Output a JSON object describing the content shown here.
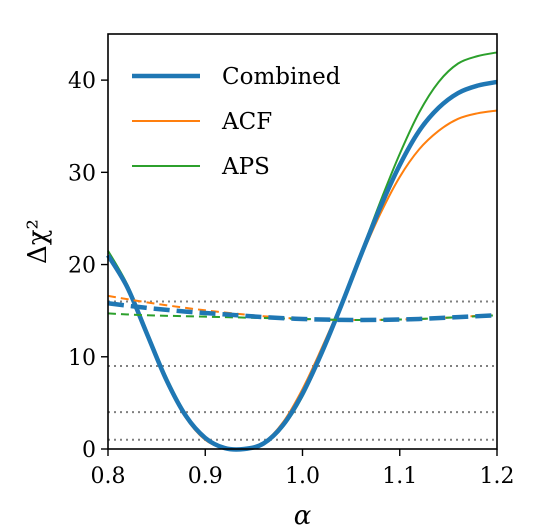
{
  "chart_data": {
    "type": "line",
    "title": "",
    "xlabel": "α",
    "ylabel": "Δχ²",
    "xlim": [
      0.8,
      1.2
    ],
    "ylim": [
      0,
      45
    ],
    "x_ticks": [
      "0.8",
      "0.9",
      "1.0",
      "1.1",
      "1.2"
    ],
    "y_ticks": [
      "0",
      "10",
      "20",
      "30",
      "40"
    ],
    "legend_position": "top-left",
    "reference_lines": [
      1,
      4,
      9,
      16
    ],
    "grid": false,
    "series": [
      {
        "name": "Combined",
        "color": "#1f77b4",
        "style": "solid",
        "weight": "thick",
        "x": [
          0.8,
          0.82,
          0.84,
          0.86,
          0.88,
          0.9,
          0.92,
          0.94,
          0.96,
          0.98,
          1.0,
          1.02,
          1.04,
          1.06,
          1.08,
          1.1,
          1.12,
          1.14,
          1.16,
          1.18,
          1.2
        ],
        "y": [
          21.0,
          17.5,
          12.5,
          7.5,
          3.6,
          1.2,
          0.1,
          0.0,
          0.6,
          2.6,
          6.0,
          10.5,
          15.6,
          21.0,
          26.2,
          30.8,
          34.5,
          37.0,
          38.6,
          39.4,
          39.8
        ]
      },
      {
        "name": "ACF",
        "color": "#ff7f0e",
        "style": "solid",
        "weight": "thin",
        "x": [
          0.8,
          0.82,
          0.84,
          0.86,
          0.88,
          0.9,
          0.92,
          0.94,
          0.96,
          0.98,
          1.0,
          1.02,
          1.04,
          1.06,
          1.08,
          1.1,
          1.12,
          1.14,
          1.16,
          1.18,
          1.2
        ],
        "y": [
          21.0,
          17.3,
          12.3,
          7.3,
          3.4,
          1.0,
          0.1,
          0.0,
          0.7,
          2.9,
          6.5,
          11.0,
          15.8,
          20.8,
          25.5,
          29.5,
          32.5,
          34.5,
          35.8,
          36.4,
          36.7
        ]
      },
      {
        "name": "APS",
        "color": "#2ca02c",
        "style": "solid",
        "weight": "thin",
        "x": [
          0.8,
          0.82,
          0.84,
          0.86,
          0.88,
          0.9,
          0.92,
          0.94,
          0.96,
          0.98,
          1.0,
          1.02,
          1.04,
          1.06,
          1.08,
          1.1,
          1.12,
          1.14,
          1.16,
          1.18,
          1.2
        ],
        "y": [
          21.5,
          17.8,
          12.8,
          7.8,
          3.8,
          1.3,
          0.2,
          0.0,
          0.5,
          2.4,
          5.7,
          10.3,
          15.5,
          21.2,
          26.8,
          32.0,
          36.5,
          39.8,
          41.8,
          42.6,
          43.0
        ]
      },
      {
        "name": "",
        "color": "#1f77b4",
        "style": "dashed",
        "weight": "thick",
        "x": [
          0.8,
          0.84,
          0.88,
          0.92,
          0.96,
          1.0,
          1.04,
          1.08,
          1.12,
          1.16,
          1.2
        ],
        "y": [
          15.8,
          15.3,
          14.9,
          14.6,
          14.3,
          14.1,
          14.0,
          14.0,
          14.1,
          14.3,
          14.5
        ]
      },
      {
        "name": "",
        "color": "#ff7f0e",
        "style": "dashed",
        "weight": "thin",
        "x": [
          0.8,
          0.84,
          0.88,
          0.92,
          0.96,
          1.0,
          1.04,
          1.08,
          1.12,
          1.16,
          1.2
        ],
        "y": [
          16.6,
          15.9,
          15.3,
          14.8,
          14.4,
          14.1,
          14.0,
          14.0,
          14.1,
          14.3,
          14.6
        ]
      },
      {
        "name": "",
        "color": "#2ca02c",
        "style": "dashed",
        "weight": "thin",
        "x": [
          0.8,
          0.84,
          0.88,
          0.92,
          0.96,
          1.0,
          1.04,
          1.08,
          1.12,
          1.16,
          1.2
        ],
        "y": [
          14.7,
          14.5,
          14.4,
          14.3,
          14.2,
          14.1,
          14.0,
          14.0,
          14.1,
          14.3,
          14.5
        ]
      }
    ]
  }
}
